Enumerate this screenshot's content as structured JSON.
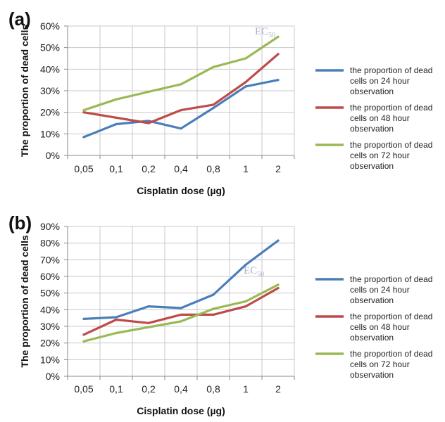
{
  "chart_data": [
    {
      "type": "line",
      "panel_label": "(a)",
      "xlabel": "Cisplatin dose (µg)",
      "ylabel": "The proportion of dead cells",
      "categories": [
        "0,05",
        "0,1",
        "0,2",
        "0,4",
        "0,8",
        "1",
        "2"
      ],
      "ylim": [
        0,
        60
      ],
      "yticks": [
        "0%",
        "10%",
        "20%",
        "30%",
        "40%",
        "50%",
        "60%"
      ],
      "grid": true,
      "legend_position": "right",
      "annotation": {
        "text": "EC",
        "sub": "50"
      },
      "series": [
        {
          "name": "the proportion of dead cells on 24 hour observation",
          "color": "#4a7ebb",
          "values": [
            8.5,
            14.5,
            16,
            12.5,
            22,
            32,
            35
          ]
        },
        {
          "name": "the proportion of dead cells on 48 hour observation",
          "color": "#be4b48",
          "values": [
            20,
            17.5,
            15,
            21,
            23.5,
            34,
            47
          ]
        },
        {
          "name": "the proportion of dead cells on 72 hour observation",
          "color": "#98b954",
          "values": [
            21,
            26,
            29.5,
            33,
            41,
            45,
            55
          ]
        }
      ]
    },
    {
      "type": "line",
      "panel_label": "(b)",
      "xlabel": "Cisplatin dose (µg)",
      "ylabel": "The proportion of dead cells",
      "categories": [
        "0,05",
        "0,1",
        "0,2",
        "0,4",
        "0,8",
        "1",
        "2"
      ],
      "ylim": [
        0,
        90
      ],
      "yticks": [
        "0%",
        "10%",
        "20%",
        "30%",
        "40%",
        "50%",
        "60%",
        "70%",
        "80%",
        "90%"
      ],
      "grid": true,
      "legend_position": "right",
      "annotation": {
        "text": "EC",
        "sub": "50"
      },
      "series": [
        {
          "name": "the proportion of dead cells on 24 hour observation",
          "color": "#4a7ebb",
          "values": [
            34.5,
            35.5,
            42,
            41,
            49,
            67,
            81.5
          ]
        },
        {
          "name": "the proportion of dead cells on 48 hour observation",
          "color": "#be4b48",
          "values": [
            25,
            34,
            32,
            37,
            37,
            42,
            53
          ]
        },
        {
          "name": "the proportion of dead cells on 72 hour observation",
          "color": "#98b954",
          "values": [
            21,
            26,
            29.5,
            33,
            40.5,
            45,
            55
          ]
        }
      ]
    }
  ]
}
